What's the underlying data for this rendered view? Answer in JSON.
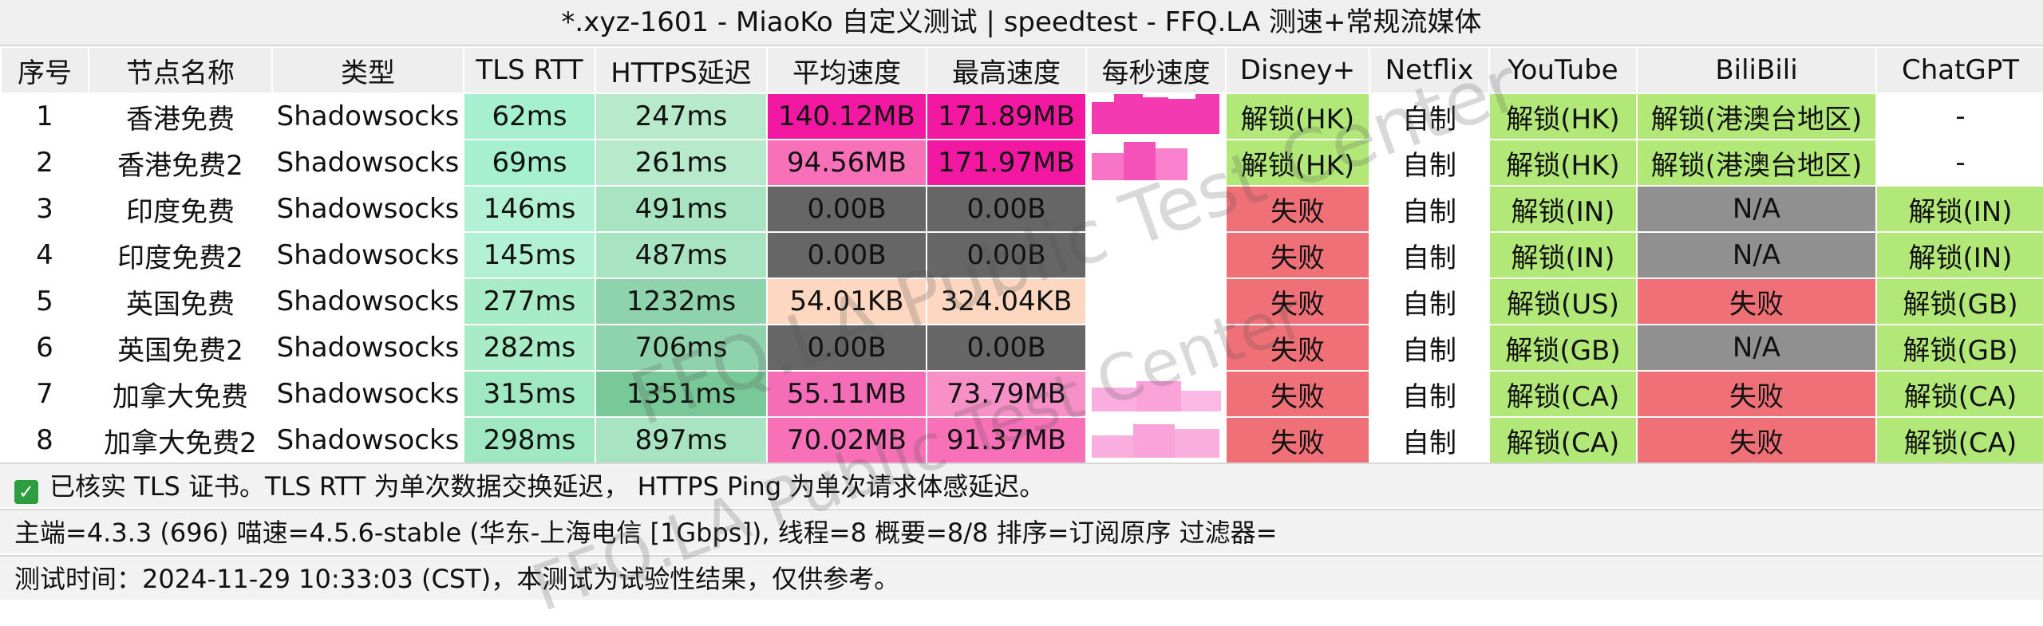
{
  "title": "*.xyz-1601 - MiaoKo 自定义测试 | speedtest - FFQ.LA 测速+常规流媒体",
  "headers": [
    "序号",
    "节点名称",
    "类型",
    "TLS RTT",
    "HTTPS延迟",
    "平均速度",
    "最高速度",
    "每秒速度",
    "Disney+",
    "Netflix",
    "YouTube",
    "BiliBili",
    "ChatGPT"
  ],
  "rows": [
    {
      "idx": "1",
      "name": "香港免费",
      "type": "Shadowsocks",
      "tls": "62ms",
      "https": "247ms",
      "avg": "140.12MB",
      "max": "171.89MB",
      "disney": "解锁(HK)",
      "netflix": "自制",
      "youtube": "解锁(HK)",
      "bili": "解锁(港澳台地区)",
      "chatgpt": "-"
    },
    {
      "idx": "2",
      "name": "香港免费2",
      "type": "Shadowsocks",
      "tls": "69ms",
      "https": "261ms",
      "avg": "94.56MB",
      "max": "171.97MB",
      "disney": "解锁(HK)",
      "netflix": "自制",
      "youtube": "解锁(HK)",
      "bili": "解锁(港澳台地区)",
      "chatgpt": "-"
    },
    {
      "idx": "3",
      "name": "印度免费",
      "type": "Shadowsocks",
      "tls": "146ms",
      "https": "491ms",
      "avg": "0.00B",
      "max": "0.00B",
      "disney": "失败",
      "netflix": "自制",
      "youtube": "解锁(IN)",
      "bili": "N/A",
      "chatgpt": "解锁(IN)"
    },
    {
      "idx": "4",
      "name": "印度免费2",
      "type": "Shadowsocks",
      "tls": "145ms",
      "https": "487ms",
      "avg": "0.00B",
      "max": "0.00B",
      "disney": "失败",
      "netflix": "自制",
      "youtube": "解锁(IN)",
      "bili": "N/A",
      "chatgpt": "解锁(IN)"
    },
    {
      "idx": "5",
      "name": "英国免费",
      "type": "Shadowsocks",
      "tls": "277ms",
      "https": "1232ms",
      "avg": "54.01KB",
      "max": "324.04KB",
      "disney": "失败",
      "netflix": "自制",
      "youtube": "解锁(US)",
      "bili": "失败",
      "chatgpt": "解锁(GB)"
    },
    {
      "idx": "6",
      "name": "英国免费2",
      "type": "Shadowsocks",
      "tls": "282ms",
      "https": "706ms",
      "avg": "0.00B",
      "max": "0.00B",
      "disney": "失败",
      "netflix": "自制",
      "youtube": "解锁(GB)",
      "bili": "N/A",
      "chatgpt": "解锁(GB)"
    },
    {
      "idx": "7",
      "name": "加拿大免费",
      "type": "Shadowsocks",
      "tls": "315ms",
      "https": "1351ms",
      "avg": "55.11MB",
      "max": "73.79MB",
      "disney": "失败",
      "netflix": "自制",
      "youtube": "解锁(CA)",
      "bili": "失败",
      "chatgpt": "解锁(CA)"
    },
    {
      "idx": "8",
      "name": "加拿大免费2",
      "type": "Shadowsocks",
      "tls": "298ms",
      "https": "897ms",
      "avg": "70.02MB",
      "max": "91.37MB",
      "disney": "失败",
      "netflix": "自制",
      "youtube": "解锁(CA)",
      "bili": "失败",
      "chatgpt": "解锁(CA)"
    }
  ],
  "footer": {
    "check_icon": "checkbox-checked-icon",
    "line1": "已核实 TLS 证书。TLS RTT 为单次数据交换延迟， HTTPS Ping 为单次请求体感延迟。",
    "line2": "主端=4.3.3 (696) 喵速=4.5.6-stable (华东-上海电信 [1Gbps]), 线程=8 概要=8/8 排序=订阅原序 过滤器=",
    "line3": "测试时间：2024-11-29 10:33:03 (CST)，本测试为试验性结果，仅供参考。"
  },
  "watermark": "FFQ.LA Public Test Center",
  "colors": {
    "unlock_green": "#b2e878",
    "fail_red": "#ef7077",
    "na_gray": "#909090",
    "speed_pink": "#f218a2",
    "zero_gray": "#666666"
  }
}
